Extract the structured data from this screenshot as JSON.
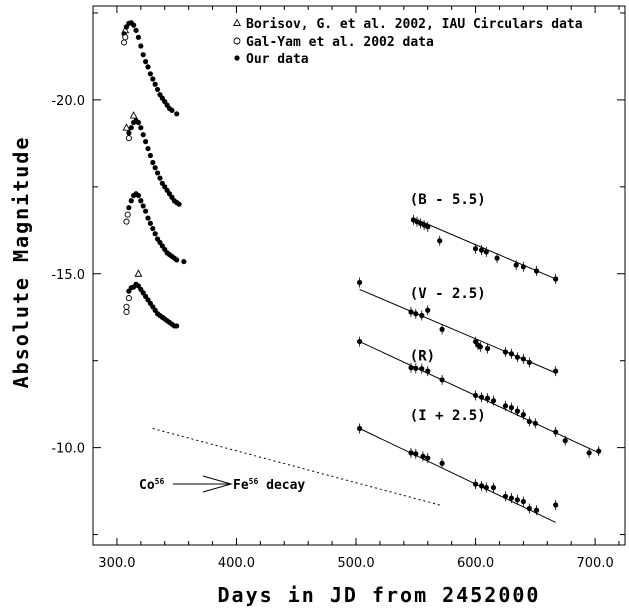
{
  "chart_data": {
    "type": "scatter",
    "title": "",
    "xlabel": "Days in JD from 2452000",
    "ylabel": "Absolute Magnitude",
    "xlim": [
      280,
      725
    ],
    "ylim": [
      -22.7,
      -7.2
    ],
    "y_inverted": true,
    "grid": false,
    "x_ticks": [
      300,
      400,
      500,
      600,
      700
    ],
    "x_tick_labels": [
      "300.0",
      "400.0",
      "500.0",
      "600.0",
      "700.0"
    ],
    "y_ticks": [
      -20,
      -15,
      -10
    ],
    "y_tick_labels": [
      "-20.0",
      "-15.0",
      "-10.0"
    ],
    "legend": {
      "position": "top-right",
      "entries": [
        {
          "marker": "triangle",
          "label": "Borisov, G. et al. 2002, IAU Circulars data"
        },
        {
          "marker": "open-circle",
          "label": "Gal-Yam et al. 2002 data"
        },
        {
          "marker": "filled-circle",
          "label": "Our data"
        }
      ]
    },
    "series": [
      {
        "name": "(B - 5.5)",
        "label_at": [
          545,
          -17.0
        ],
        "early": [
          [
            306,
            -21.9
          ],
          [
            308,
            -22.1
          ],
          [
            310,
            -22.2
          ],
          [
            312,
            -22.22
          ],
          [
            314,
            -22.15
          ],
          [
            316,
            -22.0
          ],
          [
            318,
            -21.8
          ],
          [
            320,
            -21.55
          ],
          [
            322,
            -21.3
          ],
          [
            324,
            -21.1
          ],
          [
            326,
            -20.95
          ],
          [
            328,
            -20.75
          ],
          [
            330,
            -20.6
          ],
          [
            332,
            -20.45
          ],
          [
            334,
            -20.3
          ],
          [
            336,
            -20.15
          ],
          [
            338,
            -20.05
          ],
          [
            340,
            -19.95
          ],
          [
            342,
            -19.85
          ],
          [
            344,
            -19.75
          ],
          [
            346,
            -19.7
          ],
          [
            350,
            -19.6
          ]
        ],
        "early_open": [
          [
            306,
            -21.65
          ],
          [
            307,
            -21.8
          ]
        ],
        "early_tri": [
          [
            307,
            -22.0
          ]
        ],
        "late": [
          [
            548,
            -16.55
          ],
          [
            551,
            -16.5
          ],
          [
            554,
            -16.45
          ],
          [
            557,
            -16.4
          ],
          [
            560,
            -16.35
          ],
          [
            570,
            -15.95
          ],
          [
            600,
            -15.72
          ],
          [
            605,
            -15.68
          ],
          [
            609,
            -15.63
          ],
          [
            618,
            -15.45
          ],
          [
            634,
            -15.25
          ],
          [
            640,
            -15.2
          ],
          [
            651,
            -15.08
          ],
          [
            667,
            -14.85
          ]
        ],
        "fit": [
          [
            548,
            -16.6
          ],
          [
            667,
            -14.85
          ]
        ]
      },
      {
        "name": "(V - 2.5)",
        "label_at": [
          545,
          -14.3
        ],
        "early": [
          [
            310,
            -19.05
          ],
          [
            312,
            -19.2
          ],
          [
            314,
            -19.35
          ],
          [
            316,
            -19.4
          ],
          [
            318,
            -19.35
          ],
          [
            320,
            -19.2
          ],
          [
            322,
            -19.0
          ],
          [
            324,
            -18.8
          ],
          [
            326,
            -18.6
          ],
          [
            328,
            -18.4
          ],
          [
            330,
            -18.2
          ],
          [
            332,
            -18.05
          ],
          [
            334,
            -17.9
          ],
          [
            336,
            -17.75
          ],
          [
            338,
            -17.6
          ],
          [
            340,
            -17.5
          ],
          [
            342,
            -17.4
          ],
          [
            344,
            -17.3
          ],
          [
            346,
            -17.2
          ],
          [
            348,
            -17.1
          ],
          [
            350,
            -17.05
          ],
          [
            352,
            -17.0
          ]
        ],
        "early_open": [
          [
            310,
            -18.9
          ]
        ],
        "early_tri": [
          [
            308,
            -19.2
          ],
          [
            314,
            -19.55
          ]
        ],
        "late": [
          [
            503,
            -14.75
          ],
          [
            546,
            -13.9
          ],
          [
            550,
            -13.85
          ],
          [
            555,
            -13.8
          ],
          [
            560,
            -13.95
          ],
          [
            572,
            -13.4
          ],
          [
            600,
            -13.05
          ],
          [
            602,
            -12.95
          ],
          [
            604,
            -12.9
          ],
          [
            610,
            -12.85
          ],
          [
            625,
            -12.75
          ],
          [
            630,
            -12.7
          ],
          [
            635,
            -12.6
          ],
          [
            640,
            -12.55
          ],
          [
            645,
            -12.45
          ],
          [
            667,
            -12.2
          ]
        ],
        "fit": [
          [
            503,
            -14.55
          ],
          [
            667,
            -12.15
          ]
        ]
      },
      {
        "name": "(R)",
        "label_at": [
          545,
          -12.5
        ],
        "early": [
          [
            310,
            -16.9
          ],
          [
            312,
            -17.1
          ],
          [
            314,
            -17.25
          ],
          [
            316,
            -17.3
          ],
          [
            318,
            -17.25
          ],
          [
            320,
            -17.1
          ],
          [
            322,
            -16.95
          ],
          [
            324,
            -16.8
          ],
          [
            326,
            -16.6
          ],
          [
            328,
            -16.45
          ],
          [
            330,
            -16.3
          ],
          [
            332,
            -16.15
          ],
          [
            334,
            -16.0
          ],
          [
            336,
            -15.9
          ],
          [
            338,
            -15.8
          ],
          [
            340,
            -15.7
          ],
          [
            342,
            -15.6
          ],
          [
            344,
            -15.55
          ],
          [
            346,
            -15.5
          ],
          [
            348,
            -15.45
          ],
          [
            350,
            -15.4
          ],
          [
            356,
            -15.35
          ]
        ],
        "early_open": [
          [
            308,
            -16.5
          ],
          [
            309,
            -16.7
          ]
        ],
        "early_tri": [],
        "late": [
          [
            503,
            -13.05
          ],
          [
            546,
            -12.3
          ],
          [
            550,
            -12.28
          ],
          [
            555,
            -12.27
          ],
          [
            560,
            -12.2
          ],
          [
            572,
            -11.95
          ],
          [
            600,
            -11.5
          ],
          [
            605,
            -11.45
          ],
          [
            610,
            -11.42
          ],
          [
            615,
            -11.35
          ],
          [
            625,
            -11.2
          ],
          [
            630,
            -11.15
          ],
          [
            635,
            -11.05
          ],
          [
            640,
            -10.95
          ],
          [
            645,
            -10.75
          ],
          [
            650,
            -10.7
          ],
          [
            667,
            -10.45
          ],
          [
            675,
            -10.2
          ],
          [
            695,
            -9.85
          ],
          [
            703,
            -9.9
          ]
        ],
        "fit": [
          [
            503,
            -13.05
          ],
          [
            703,
            -9.85
          ]
        ]
      },
      {
        "name": "(I + 2.5)",
        "label_at": [
          545,
          -10.8
        ],
        "early": [
          [
            310,
            -14.5
          ],
          [
            312,
            -14.6
          ],
          [
            314,
            -14.62
          ],
          [
            316,
            -14.7
          ],
          [
            318,
            -14.65
          ],
          [
            320,
            -14.55
          ],
          [
            322,
            -14.45
          ],
          [
            324,
            -14.35
          ],
          [
            326,
            -14.25
          ],
          [
            328,
            -14.15
          ],
          [
            330,
            -14.05
          ],
          [
            332,
            -13.95
          ],
          [
            334,
            -13.85
          ],
          [
            336,
            -13.8
          ],
          [
            338,
            -13.75
          ],
          [
            340,
            -13.7
          ],
          [
            342,
            -13.65
          ],
          [
            344,
            -13.6
          ],
          [
            346,
            -13.55
          ],
          [
            348,
            -13.5
          ],
          [
            350,
            -13.5
          ]
        ],
        "early_open": [
          [
            308,
            -13.9
          ],
          [
            308,
            -14.05
          ],
          [
            310,
            -14.3
          ]
        ],
        "early_tri": [
          [
            318,
            -15.0
          ]
        ],
        "late": [
          [
            503,
            -10.55
          ],
          [
            546,
            -9.85
          ],
          [
            550,
            -9.82
          ],
          [
            556,
            -9.75
          ],
          [
            560,
            -9.7
          ],
          [
            572,
            -9.55
          ],
          [
            600,
            -8.95
          ],
          [
            605,
            -8.9
          ],
          [
            609,
            -8.85
          ],
          [
            615,
            -8.85
          ],
          [
            625,
            -8.6
          ],
          [
            630,
            -8.55
          ],
          [
            635,
            -8.5
          ],
          [
            640,
            -8.45
          ],
          [
            645,
            -8.25
          ],
          [
            651,
            -8.2
          ],
          [
            667,
            -8.35
          ]
        ],
        "fit": [
          [
            503,
            -10.55
          ],
          [
            667,
            -7.85
          ]
        ]
      }
    ],
    "decay_line": {
      "points": [
        [
          330,
          -10.55
        ],
        [
          570,
          -8.35
        ]
      ],
      "annotation": {
        "text_left": "Co",
        "sup_left": "56",
        "text_right": "Fe",
        "sup_right": "56",
        "tail": " decay"
      }
    }
  }
}
